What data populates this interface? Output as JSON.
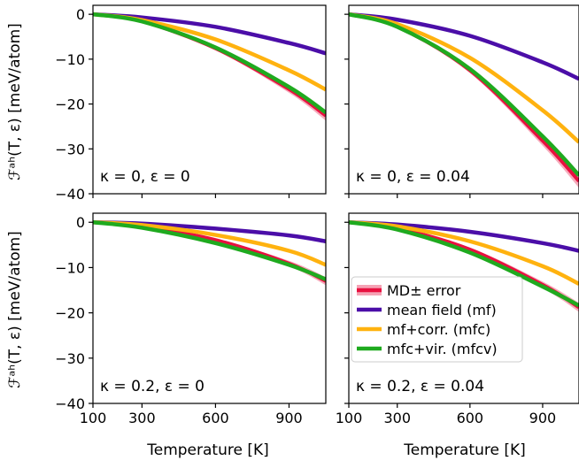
{
  "chart_data": {
    "type": "line",
    "x_label": "Temperature [K]",
    "y_label_top": "ℱᵃʰ(T, ε) [meV/atom]",
    "y_label_bottom": "ℱᵃʰ(T, ε) [meV/atom]",
    "xlim": [
      100,
      1050
    ],
    "x_ticks": [
      100,
      300,
      600,
      900
    ],
    "legend": {
      "placement": "center-left of bottom-right panel",
      "entries": [
        "MD± error",
        "mean field (mf)",
        "mf+corr. (mfc)",
        "mfc+vir. (mfcv)"
      ]
    },
    "colors": {
      "md": "#e8103f",
      "md_band": "#f5a3b5",
      "mf": "#4b0ea8",
      "mfc": "#ffb20f",
      "mfcv": "#1faa1f"
    },
    "panels": [
      {
        "annotation": "κ = 0, ε = 0",
        "ylim": [
          -40,
          2
        ],
        "y_ticks": [
          0,
          -10,
          -20,
          -30,
          -40
        ],
        "x": [
          100,
          300,
          600,
          900,
          1050
        ],
        "series": [
          {
            "name": "MD± error",
            "values": [
              0,
              -1.6,
              -7.6,
              -16.7,
              -22.6
            ],
            "error": [
              0,
              0.2,
              0.4,
              0.8,
              1.1
            ]
          },
          {
            "name": "mean field (mf)",
            "values": [
              0,
              -0.7,
              -2.8,
              -6.4,
              -8.7
            ]
          },
          {
            "name": "mf+corr. (mfc)",
            "values": [
              0,
              -1.3,
              -5.6,
              -12.5,
              -16.8
            ]
          },
          {
            "name": "mfc+vir. (mfcv)",
            "values": [
              0,
              -1.6,
              -7.4,
              -16.2,
              -21.9
            ]
          }
        ]
      },
      {
        "annotation": "κ = 0, ε = 0.04",
        "ylim": [
          -40,
          2
        ],
        "y_ticks": [
          0,
          -10,
          -20,
          -30,
          -40
        ],
        "x": [
          100,
          300,
          600,
          900,
          1050
        ],
        "series": [
          {
            "name": "MD± error",
            "values": [
              0,
              -2.8,
              -12.5,
              -28.2,
              -37.2
            ],
            "error": [
              0,
              0.3,
              0.6,
              1.1,
              1.5
            ]
          },
          {
            "name": "mean field (mf)",
            "values": [
              0,
              -1.2,
              -4.8,
              -10.7,
              -14.4
            ]
          },
          {
            "name": "mf+corr. (mfc)",
            "values": [
              0,
              -2.2,
              -9.7,
              -21.4,
              -28.5
            ]
          },
          {
            "name": "mfc+vir. (mfcv)",
            "values": [
              0,
              -2.8,
              -12.2,
              -27.2,
              -35.9
            ]
          }
        ]
      },
      {
        "annotation": "κ = 0.2, ε = 0",
        "ylim": [
          -40,
          2
        ],
        "y_ticks": [
          0,
          -10,
          -20,
          -30,
          -40
        ],
        "x": [
          100,
          300,
          600,
          900,
          1050
        ],
        "series": [
          {
            "name": "MD± error",
            "values": [
              0,
              -0.9,
              -3.9,
              -9.1,
              -13.0
            ],
            "error": [
              0,
              0.15,
              0.3,
              0.6,
              0.9
            ]
          },
          {
            "name": "mean field (mf)",
            "values": [
              0,
              -0.3,
              -1.4,
              -2.9,
              -4.2
            ]
          },
          {
            "name": "mf+corr. (mfc)",
            "values": [
              0,
              -0.6,
              -2.8,
              -6.3,
              -9.4
            ]
          },
          {
            "name": "mfc+vir. (mfcv)",
            "values": [
              0,
              -1.2,
              -4.6,
              -9.4,
              -12.6
            ]
          }
        ]
      },
      {
        "annotation": "κ = 0.2, ε = 0.04",
        "ylim": [
          -40,
          2
        ],
        "y_ticks": [
          0,
          -10,
          -20,
          -30,
          -40
        ],
        "x": [
          100,
          300,
          600,
          900,
          1050
        ],
        "series": [
          {
            "name": "MD± error",
            "values": [
              0,
              -1.3,
              -6.0,
              -13.8,
              -18.8
            ],
            "error": [
              0,
              0.2,
              0.4,
              0.7,
              1.0
            ]
          },
          {
            "name": "mean field (mf)",
            "values": [
              0,
              -0.5,
              -2.1,
              -4.6,
              -6.3
            ]
          },
          {
            "name": "mf+corr. (mfc)",
            "values": [
              0,
              -0.9,
              -4.2,
              -9.7,
              -13.6
            ]
          },
          {
            "name": "mfc+vir. (mfcv)",
            "values": [
              0,
              -1.6,
              -6.7,
              -14.2,
              -18.4
            ]
          }
        ]
      }
    ]
  }
}
